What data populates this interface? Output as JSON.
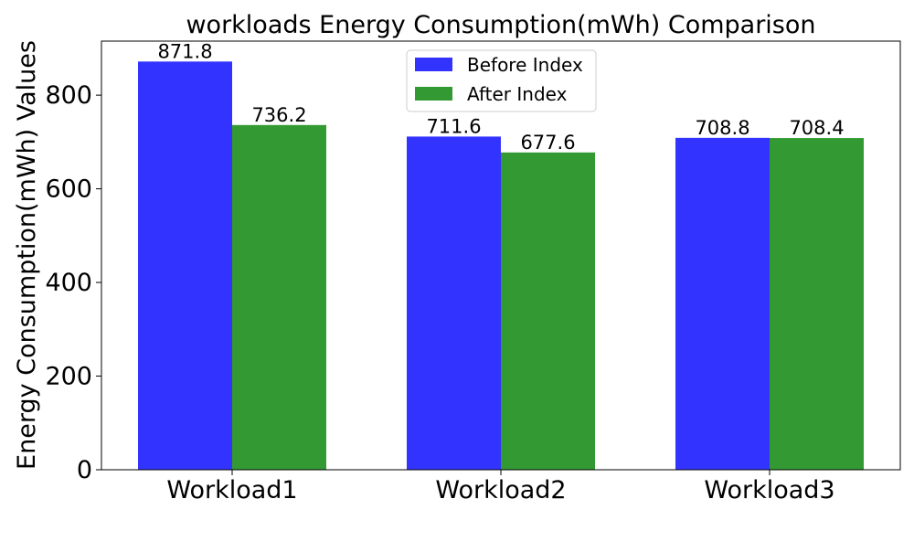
{
  "chart_data": {
    "type": "bar",
    "title": "workloads Energy Consumption(mWh) Comparison",
    "xlabel": "",
    "ylabel": "Energy Consumption(mWh) Values",
    "categories": [
      "Workload1",
      "Workload2",
      "Workload3"
    ],
    "series": [
      {
        "name": "Before Index",
        "color": "#3333ff",
        "values": [
          871.8,
          711.6,
          708.8
        ],
        "labels": [
          "871.8",
          "711.6",
          "708.8"
        ]
      },
      {
        "name": "After Index",
        "color": "#339933",
        "values": [
          736.2,
          677.6,
          708.4
        ],
        "labels": [
          "736.2",
          "677.6",
          "708.4"
        ]
      }
    ],
    "ylim": [
      0,
      915.39
    ],
    "yticks": [
      0,
      200,
      400,
      600,
      800
    ],
    "ytick_labels": [
      "0",
      "200",
      "400",
      "600",
      "800"
    ],
    "grid": false,
    "legend_position": "top-center"
  }
}
